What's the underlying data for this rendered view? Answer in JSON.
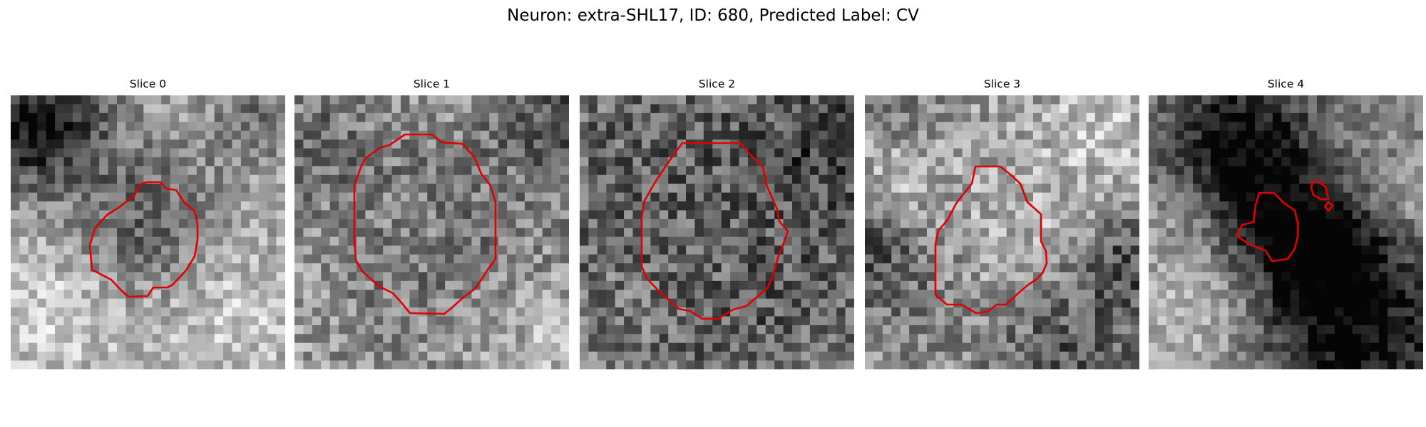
{
  "figure": {
    "title": "Neuron: extra-SHL17, ID: 680, Predicted Label: CV"
  },
  "outline_color": "#e00000",
  "slices": [
    {
      "title": "Slice 0"
    },
    {
      "title": "Slice 1"
    },
    {
      "title": "Slice 2"
    },
    {
      "title": "Slice 3"
    },
    {
      "title": "Slice 4"
    }
  ]
}
